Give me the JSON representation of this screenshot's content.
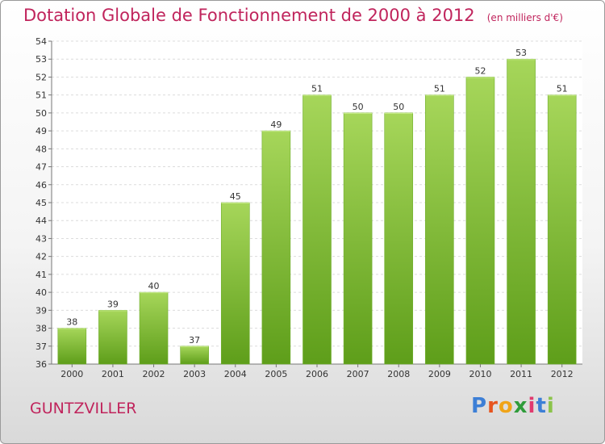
{
  "title": "Dotation Globale de Fonctionnement de 2000 à 2012",
  "unit_note": "(en milliers d'€)",
  "commune": "GUNTZVILLER",
  "logo": [
    "P",
    "r",
    "o",
    "x",
    "i",
    "t",
    "i"
  ],
  "colors": {
    "title": "#c0245c",
    "bar_light": "#a6d65a",
    "bar_dark": "#5e9e1a"
  },
  "chart_data": {
    "type": "bar",
    "title": "Dotation Globale de Fonctionnement de 2000 à 2012",
    "categories": [
      "2000",
      "2001",
      "2002",
      "2003",
      "2004",
      "2005",
      "2006",
      "2007",
      "2008",
      "2009",
      "2010",
      "2011",
      "2012"
    ],
    "values": [
      38,
      39,
      40,
      37,
      45,
      49,
      51,
      50,
      50,
      51,
      52,
      53,
      51
    ],
    "data_labels": [
      "38",
      "39",
      "40",
      "37",
      "45",
      "49",
      "51",
      "50",
      "50",
      "51",
      "52",
      "53",
      "51"
    ],
    "ylim": [
      36,
      54
    ],
    "yticks": [
      "36",
      "37",
      "38",
      "39",
      "40",
      "41",
      "42",
      "43",
      "44",
      "45",
      "46",
      "47",
      "48",
      "49",
      "50",
      "51",
      "52",
      "53",
      "54"
    ],
    "grid": true,
    "legend": "none",
    "xlabel": "",
    "ylabel": ""
  }
}
